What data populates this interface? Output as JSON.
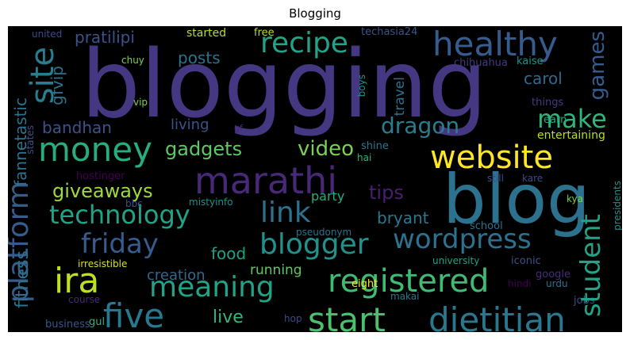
{
  "title": "Blogging",
  "colors": {
    "background": "#000000"
  },
  "words": [
    "blogging",
    "blog",
    "money",
    "marathi",
    "website",
    "healthy",
    "recipe",
    "site",
    "technology",
    "ira",
    "five",
    "start",
    "dietitian",
    "registered",
    "meaning",
    "wordpress",
    "blogger",
    "friday",
    "link",
    "student",
    "platform",
    "make",
    "dragon",
    "video",
    "gadgets",
    "giveaways",
    "games",
    "carol",
    "bandhan",
    "living",
    "gfvip",
    "posts",
    "pratilipi",
    "tips",
    "party",
    "bryant",
    "food",
    "creation",
    "running",
    "live",
    "fitness",
    "fannetastic",
    "travel",
    "united",
    "started",
    "free",
    "techasia24",
    "chuy",
    "chihuahua",
    "kaise",
    "vip",
    "things",
    "boys",
    "gf",
    "shine",
    "hai",
    "entertaining",
    "still",
    "kare",
    "earn",
    "hostinger",
    "bbc",
    "mistyinfo",
    "kya",
    "school",
    "presidents",
    "pseudonym",
    "irresistible",
    "university",
    "iconic",
    "google",
    "course",
    "eight",
    "makai",
    "hindi",
    "urdu",
    "jobs",
    "gul",
    "business",
    "hop",
    "states"
  ]
}
